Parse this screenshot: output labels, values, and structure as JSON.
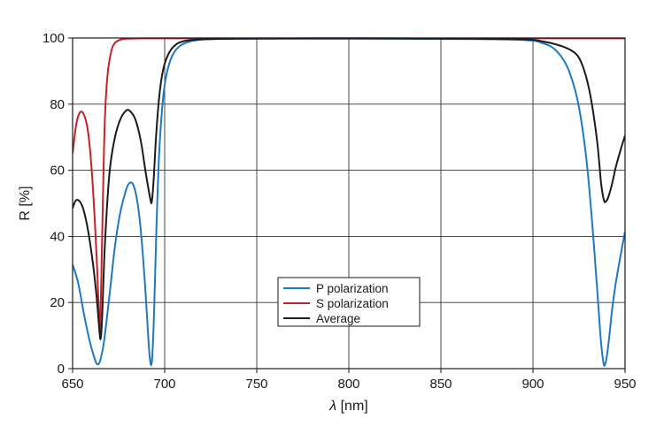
{
  "chart_data": {
    "type": "line",
    "title": "",
    "xlabel_symbol": "λ",
    "xlabel_unit": " [nm]",
    "ylabel": "R [%]",
    "xlim": [
      650,
      950
    ],
    "ylim": [
      0,
      100
    ],
    "x_ticks": [
      650,
      700,
      750,
      800,
      850,
      900,
      950
    ],
    "y_ticks": [
      0,
      20,
      40,
      60,
      80,
      100
    ],
    "grid": true,
    "legend_position": "bottom-center",
    "series": [
      {
        "name": "P polarization",
        "color": "#1f78c1",
        "x": [
          650,
          653,
          656,
          659,
          662,
          663.5,
          665,
          667,
          670,
          673,
          676,
          679,
          681,
          683,
          685,
          687,
          689,
          690.5,
          691.5,
          692.5,
          693.3,
          694.3,
          695.5,
          697,
          699,
          701,
          704,
          708,
          714,
          722,
          740,
          800,
          860,
          895,
          905,
          912,
          918,
          922,
          925,
          928,
          930.5,
          933,
          935,
          936.5,
          937.5,
          938.5,
          939.3,
          940.3,
          941.5,
          943,
          945,
          947.5,
          950
        ],
        "values": [
          31.5,
          26,
          17,
          9,
          3,
          1.3,
          2.5,
          8,
          22,
          37,
          47.5,
          54,
          56.2,
          55.5,
          51,
          42,
          28,
          15,
          6,
          1.2,
          4,
          18,
          42,
          65,
          81,
          89,
          94.5,
          97.5,
          99,
          99.6,
          99.8,
          99.8,
          99.7,
          99.4,
          98.5,
          96.5,
          92,
          86,
          79,
          68,
          55,
          38,
          23,
          11,
          5,
          1.2,
          1.5,
          4.5,
          10,
          18,
          26,
          34,
          41.5
        ]
      },
      {
        "name": "S polarization",
        "color": "#c8202a",
        "x": [
          650,
          652,
          654,
          656,
          658,
          659.5,
          661,
          662.5,
          663.5,
          664.3,
          664.8,
          665.5,
          666.5,
          667.5,
          669,
          671,
          673,
          676,
          680,
          688,
          700,
          800,
          950
        ],
        "values": [
          65,
          74,
          77.5,
          77,
          73,
          66,
          55,
          40,
          28,
          16,
          11,
          25,
          52,
          75,
          89,
          96,
          98.5,
          99.5,
          99.8,
          99.9,
          99.9,
          99.9,
          99.9
        ]
      },
      {
        "name": "Average",
        "color": "#1a1a1a",
        "x": [
          650,
          652,
          655,
          658,
          661,
          663,
          664.5,
          665.2,
          666,
          667.5,
          670,
          673,
          676,
          679,
          681,
          684,
          687,
          689.5,
          691,
          692.3,
          693,
          694,
          695.3,
          697,
          699,
          701.5,
          705,
          710,
          720,
          740,
          800,
          860,
          895,
          905,
          913,
          920,
          925,
          929,
          932,
          935,
          937,
          938.5,
          939.5,
          941,
          943,
          945,
          947.5,
          950
        ],
        "values": [
          48.5,
          51,
          49.5,
          43,
          32,
          22,
          12,
          9,
          15,
          37,
          59,
          70,
          75.5,
          78,
          78,
          75.5,
          69,
          60,
          55,
          51,
          50.5,
          57,
          70,
          82,
          90,
          94.5,
          97.5,
          99,
          99.6,
          99.8,
          99.9,
          99.8,
          99.6,
          99,
          98,
          96.5,
          94,
          88,
          80,
          68,
          56,
          51,
          50.5,
          52,
          56,
          61,
          66,
          70.5
        ]
      }
    ]
  }
}
